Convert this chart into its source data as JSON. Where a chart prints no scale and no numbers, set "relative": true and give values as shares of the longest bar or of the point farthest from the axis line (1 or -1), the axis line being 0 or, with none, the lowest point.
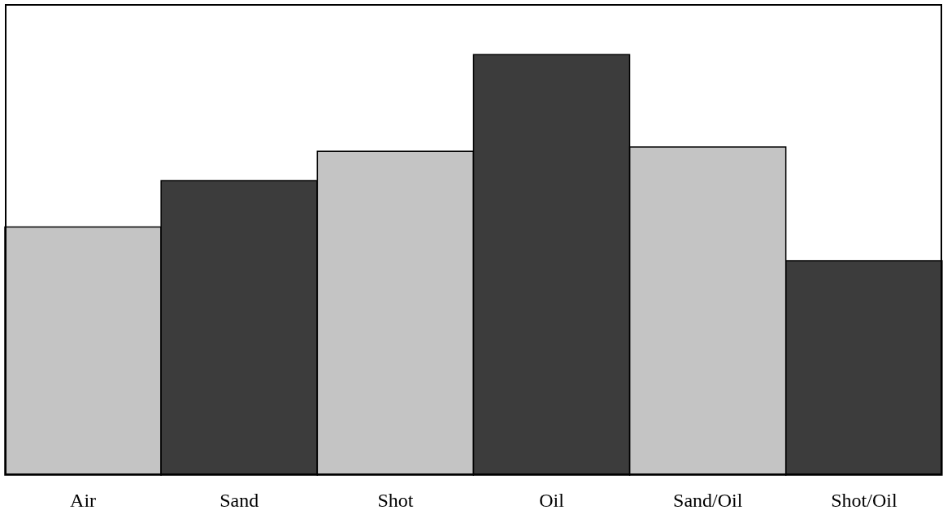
{
  "chart_data": {
    "type": "bar",
    "relative": true,
    "categories": [
      "Air",
      "Sand",
      "Shot",
      "Oil",
      "Sand/Oil",
      "Shot/Oil"
    ],
    "values": [
      0.59,
      0.7,
      0.77,
      1,
      0.78,
      0.51
    ],
    "colors": [
      "#c4c4c4",
      "#3c3c3c",
      "#c4c4c4",
      "#3c3c3c",
      "#c4c4c4",
      "#3c3c3c"
    ],
    "legend": false,
    "grid": false
  }
}
